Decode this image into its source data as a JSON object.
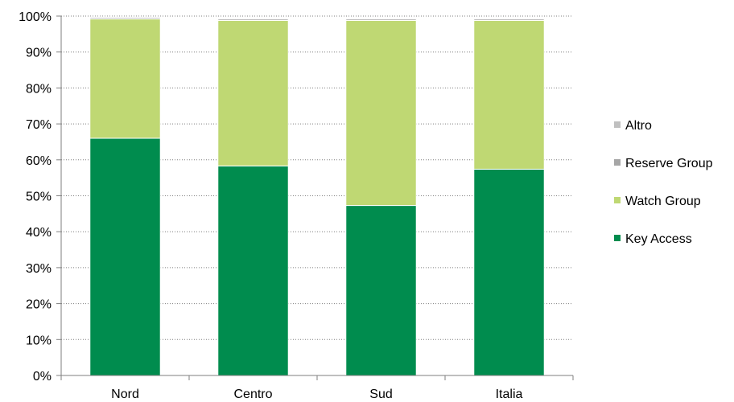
{
  "chart_data": {
    "type": "bar",
    "stacked": true,
    "categories": [
      "Nord",
      "Centro",
      "Sud",
      "Italia"
    ],
    "series": [
      {
        "name": "Key Access",
        "color": "#008C4E",
        "values": [
          66,
          58.3,
          47.3,
          57.4
        ]
      },
      {
        "name": "Watch Group",
        "color": "#BFD873",
        "values": [
          33.2,
          40.5,
          51.5,
          41.4
        ]
      },
      {
        "name": "Reserve Group",
        "color": "#A6A6A6",
        "values": [
          0.4,
          0.4,
          0.4,
          0.4
        ]
      },
      {
        "name": "Altro",
        "color": "#C0C0C0",
        "values": [
          0.2,
          0.2,
          0.2,
          0.2
        ]
      }
    ],
    "ylim": [
      0,
      100
    ],
    "yticks": [
      "0%",
      "10%",
      "20%",
      "30%",
      "40%",
      "50%",
      "60%",
      "70%",
      "80%",
      "90%",
      "100%"
    ],
    "grid": true,
    "legend_position": "right",
    "legend_order": [
      "Altro",
      "Reserve Group",
      "Watch Group",
      "Key Access"
    ],
    "title": "",
    "xlabel": "",
    "ylabel": ""
  }
}
